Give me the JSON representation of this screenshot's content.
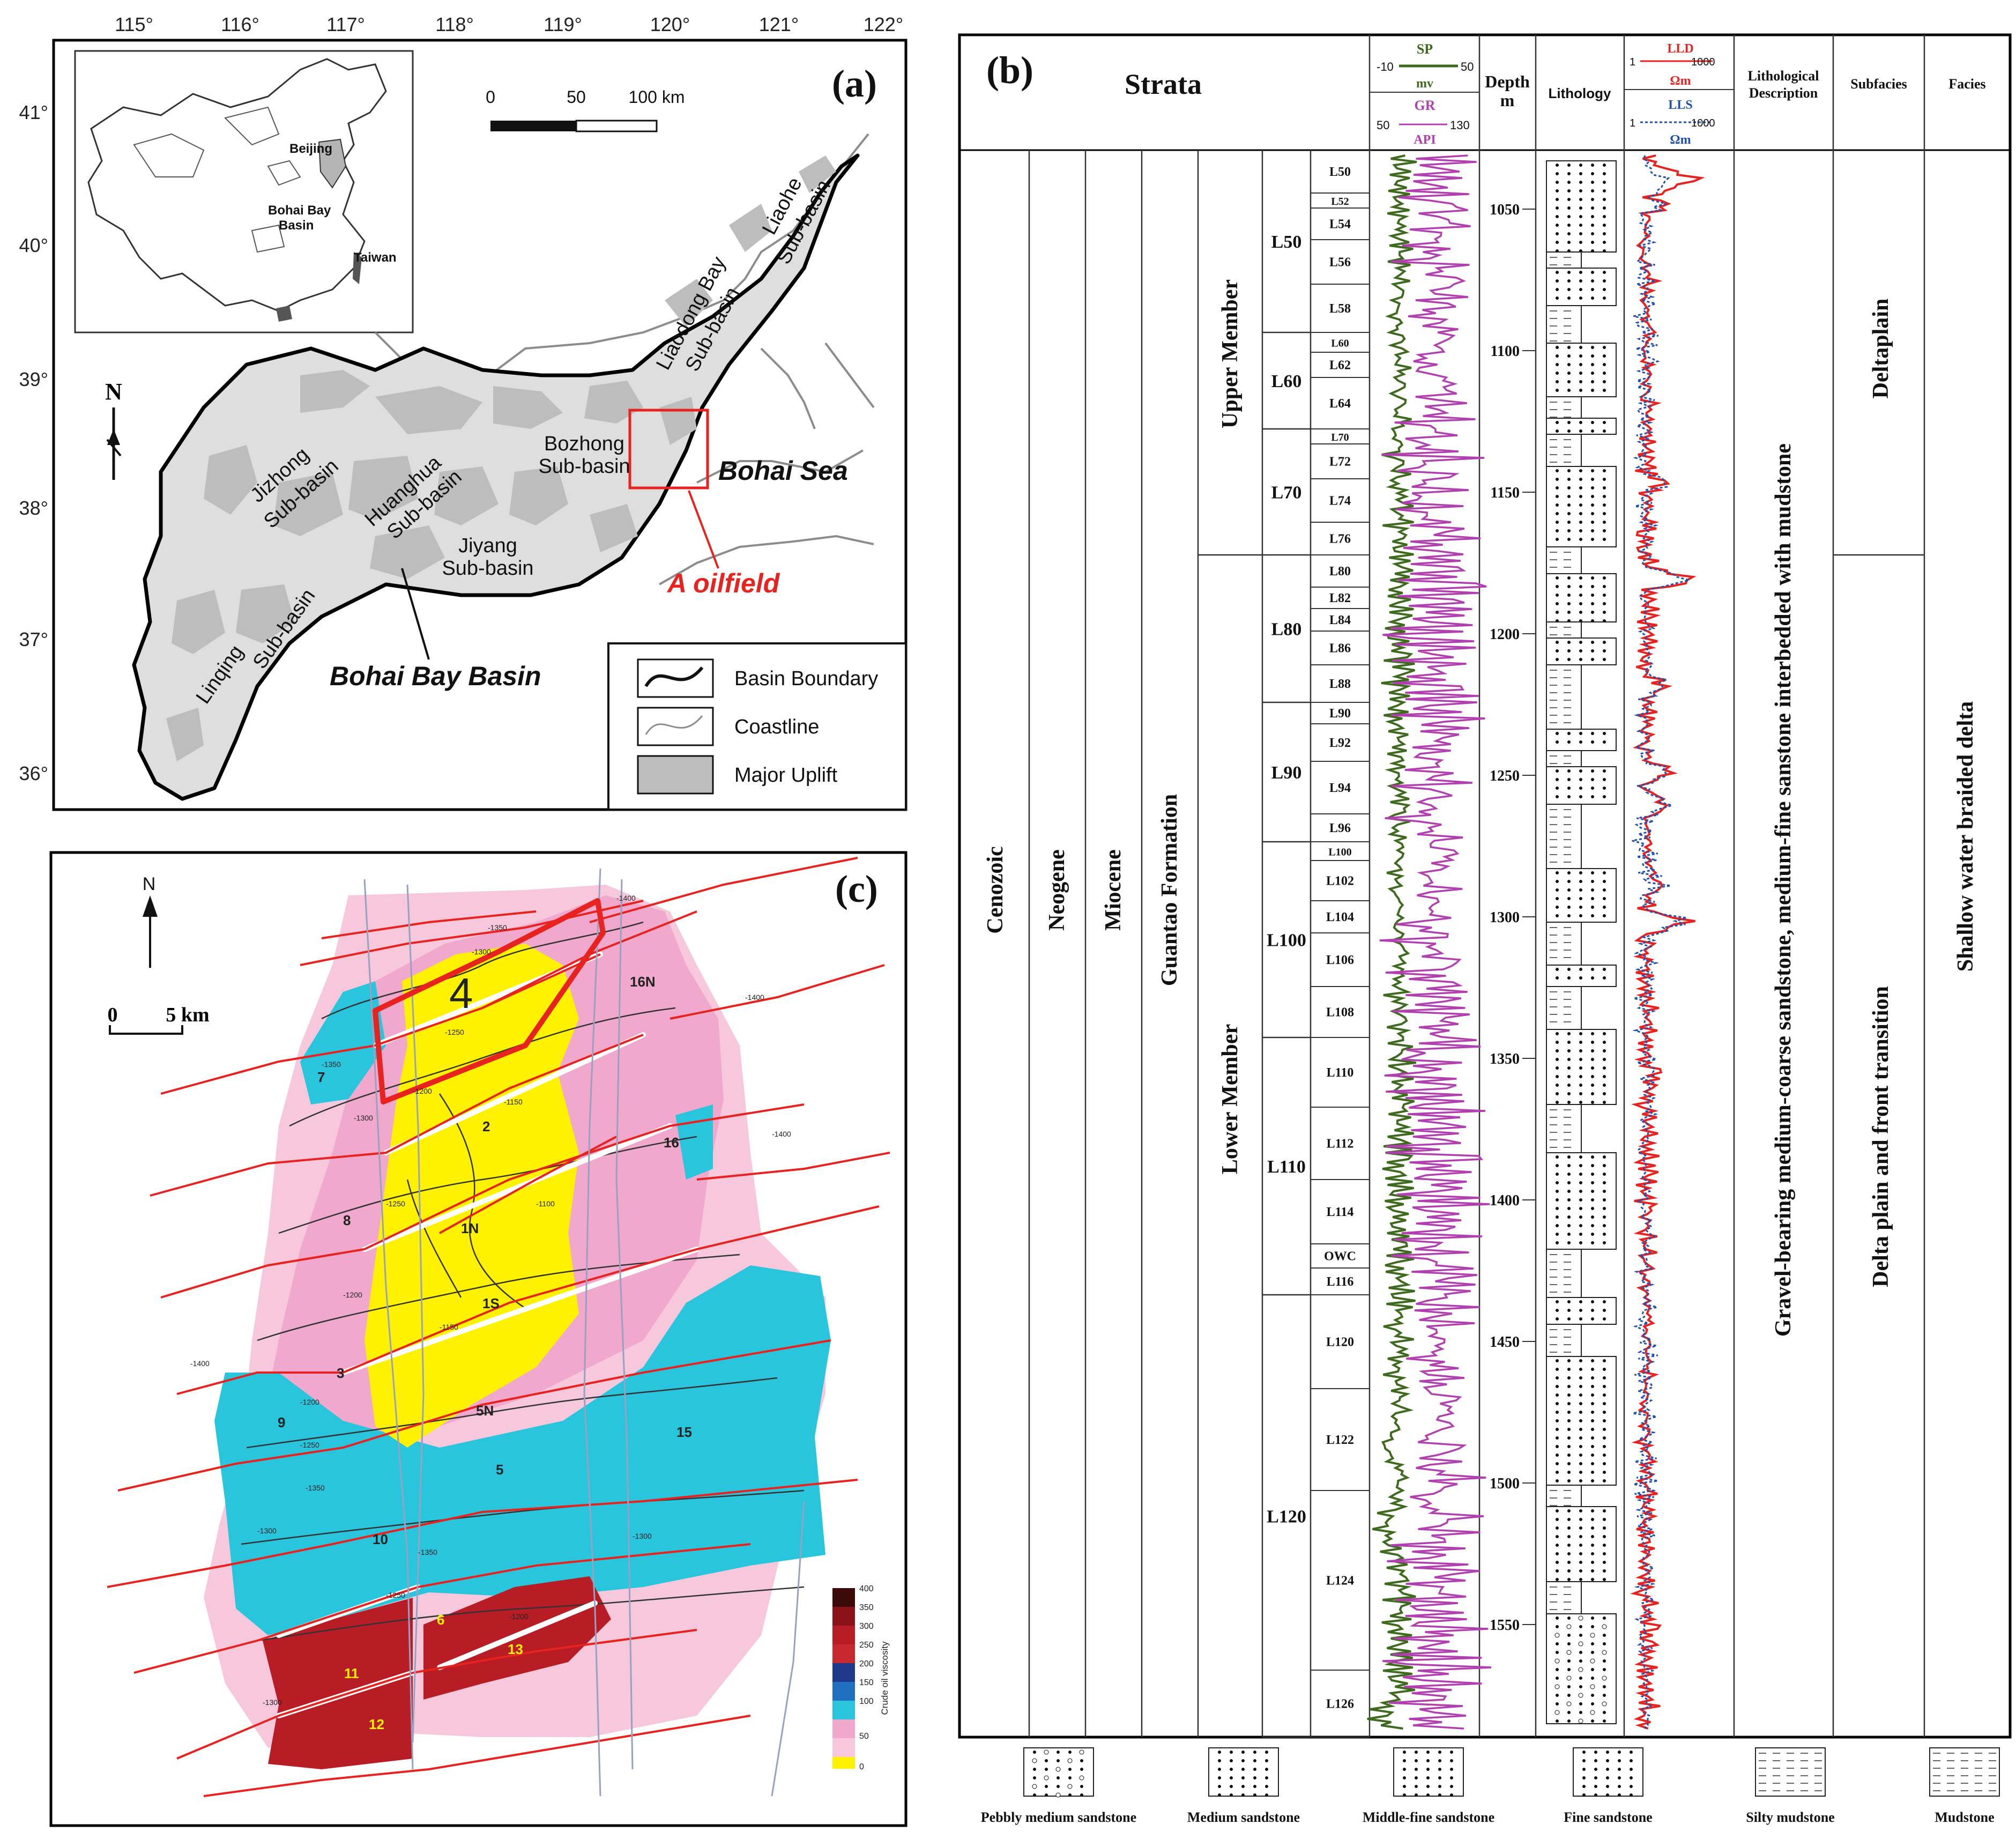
{
  "panel_a": {
    "label": "(a)",
    "lon_ticks": [
      "115°",
      "116°",
      "117°",
      "118°",
      "119°",
      "120°",
      "121°",
      "122°"
    ],
    "lat_ticks": [
      "41°",
      "40°",
      "39°",
      "38°",
      "37°",
      "36°"
    ],
    "scalebar": {
      "t0": "0",
      "t1": "50",
      "t2": "100 km"
    },
    "north": "N",
    "inset": {
      "beijing": "Beijing",
      "bohai_bay_basin_1": "Bohai Bay",
      "bohai_bay_basin_2": "Basin",
      "taiwan": "Taiwan"
    },
    "labels": {
      "jizhong_1": "Jizhong",
      "jizhong_2": "Sub-basin",
      "huanghua_1": "Huanghua",
      "huanghua_2": "Sub-basin",
      "bozhong_1": "Bozhong",
      "bozhong_2": "Sub-basin",
      "liaodong_1": "Liaodong Bay",
      "liaodong_2": "Sub-basin",
      "liaohe_1": "Liaohe",
      "liaohe_2": "Sub-basin",
      "jiyang_1": "Jiyang",
      "jiyang_2": "Sub-basin",
      "linqing": "Linqing",
      "linqing_sub": "Sub-basin",
      "bohai_sea": "Bohai Sea",
      "a_oilfield": "A oilfield",
      "bohai_bay_basin": "Bohai Bay Basin"
    },
    "legend": {
      "boundary": "Basin Boundary",
      "coastline": "Coastline",
      "uplift": "Major Uplift"
    },
    "colors": {
      "uplift": "#bdbdbd",
      "basin": "#dcdcdc",
      "oilfield": "#e8221f"
    }
  },
  "panel_b": {
    "label": "(b)",
    "header": {
      "strata": "Strata",
      "sp": "SP",
      "sp_min": "-10",
      "sp_max": "50",
      "sp_unit": "mv",
      "gr": "GR",
      "gr_min": "50",
      "gr_max": "130",
      "gr_unit": "API",
      "depth": "Depth",
      "depth_unit": "m",
      "lithology": "Lithology",
      "lld": "LLD",
      "lld_min": "1",
      "lld_max": "1000",
      "lld_unit": "Ωm",
      "lls": "LLS",
      "lls_min": "1",
      "lls_max": "1000",
      "lls_unit": "Ωm",
      "desc_1": "Lithological",
      "desc_2": "Description",
      "subfacies": "Subfacies",
      "facies": "Facies"
    },
    "era": "Cenozoic",
    "period": "Neogene",
    "epoch": "Miocene",
    "formation": "Guantao Formation",
    "members": [
      "Upper Member",
      "Lower Member"
    ],
    "groups": [
      "L50",
      "L60",
      "L70",
      "L80",
      "L90",
      "L100",
      "L110",
      "L120"
    ],
    "layers": [
      "L50",
      "L52",
      "L54",
      "L56",
      "L58",
      "L60",
      "L62",
      "L64",
      "L70",
      "L72",
      "L74",
      "L76",
      "L80",
      "L82",
      "L84",
      "L86",
      "L88",
      "L90",
      "L92",
      "L94",
      "L96",
      "L100",
      "L102",
      "L104",
      "L106",
      "L108",
      "L110",
      "L112",
      "L114",
      "OWC",
      "L116",
      "L120",
      "L122",
      "L124",
      "L126"
    ],
    "depth_ticks": [
      "1050",
      "1100",
      "1150",
      "1200",
      "1250",
      "1300",
      "1350",
      "1400",
      "1450",
      "1500",
      "1550"
    ],
    "description": "Gravel-bearing medium-coarse sandstone, medium-fine sanstone interbedded with mudstone",
    "subfacies": [
      "Deltaplain",
      "Delta plain and front transition"
    ],
    "facies": "Shallow water braided delta",
    "legend": [
      "Pebbly medium sandstone",
      "Medium sandstone",
      "Middle-fine sandstone",
      "Fine sandstone",
      "Silty mudstone",
      "Mudstone"
    ],
    "colors": {
      "sp": "#3d6a1d",
      "gr": "#b13fb0",
      "lld": "#e8221f",
      "lls": "#1f4fb0"
    }
  },
  "panel_c": {
    "label": "(c)",
    "north": "N",
    "scale": {
      "t0": "0",
      "t1": "5 km"
    },
    "block_numbers": {
      "b4": "4",
      "b16n": "16N",
      "b7": "7",
      "b2": "2",
      "b16": "16",
      "b8": "8",
      "b1n": "1N",
      "b1s": "1S",
      "b3": "3",
      "b9": "9",
      "b5n": "5N",
      "b15": "15",
      "b5": "5",
      "b10": "10",
      "b6": "6",
      "b13": "13",
      "b11": "11",
      "b12": "12"
    },
    "contours": {
      "c1": "-1400",
      "c2": "-1350",
      "c3": "-1300",
      "c4": "-1250",
      "c5": "-1200",
      "c6": "-1150",
      "c7": "-1100",
      "c8": "-1400",
      "c9": "-1400",
      "c10": "-1350",
      "c11": "-1300",
      "c12": "-1250",
      "c13": "-1200",
      "c14": "-1150",
      "c15": "-1400",
      "c16": "-1350",
      "c17": "-1300",
      "c18": "-1250",
      "c19": "-1200",
      "c20": "-1300",
      "c21": "-1350",
      "c22": "-1250",
      "c23": "-1300",
      "c24": "-1200"
    },
    "colorbar": {
      "title": "Crude oil viscosity",
      "ticks": [
        "400",
        "350",
        "300",
        "250",
        "200",
        "150",
        "100",
        "50",
        "0"
      ]
    },
    "colors": {
      "yellow": "#fff200",
      "pink": "#f0a8cc",
      "lightpink": "#f7c8dc",
      "cyan": "#29c5dc",
      "darkred": "#b81c24",
      "fault": "#e8221f"
    }
  }
}
